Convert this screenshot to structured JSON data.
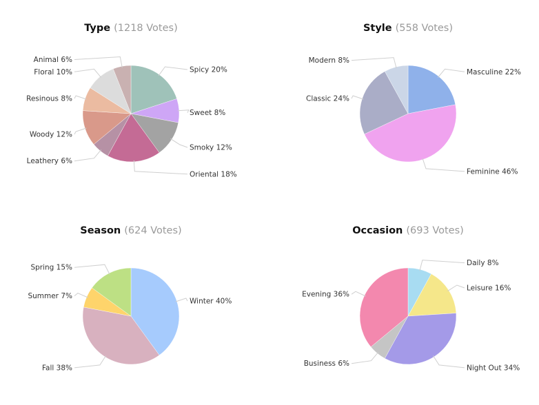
{
  "chart_data": [
    {
      "type": "pie",
      "title": "Type",
      "subtitle": "(1218 Votes)",
      "slices": [
        {
          "label": "Spicy",
          "value": 20,
          "display": "Spicy 20%",
          "color": "#9fc2b9"
        },
        {
          "label": "Sweet",
          "value": 8,
          "display": "Sweet 8%",
          "color": "#cea6f6"
        },
        {
          "label": "Smoky",
          "value": 12,
          "display": "Smoky 12%",
          "color": "#a3a3a3"
        },
        {
          "label": "Oriental",
          "value": 18,
          "display": "Oriental 18%",
          "color": "#c46b95"
        },
        {
          "label": "Leathery",
          "value": 6,
          "display": "Leathery 6%",
          "color": "#b691a5"
        },
        {
          "label": "Woody",
          "value": 12,
          "display": "Woody 12%",
          "color": "#d9998a"
        },
        {
          "label": "Resinous",
          "value": 8,
          "display": "Resinous 8%",
          "color": "#ebbba1"
        },
        {
          "label": "Floral",
          "value": 10,
          "display": "Floral 10%",
          "color": "#dcdcdc"
        },
        {
          "label": "Animal",
          "value": 6,
          "display": "Animal 6%",
          "color": "#c9b1b1"
        }
      ]
    },
    {
      "type": "pie",
      "title": "Style",
      "subtitle": "(558 Votes)",
      "slices": [
        {
          "label": "Masculine",
          "value": 22,
          "display": "Masculine 22%",
          "color": "#8fb1ea"
        },
        {
          "label": "Feminine",
          "value": 46,
          "display": "Feminine 46%",
          "color": "#f0a3ef"
        },
        {
          "label": "Classic",
          "value": 24,
          "display": "Classic 24%",
          "color": "#aaadc7"
        },
        {
          "label": "Modern",
          "value": 8,
          "display": "Modern 8%",
          "color": "#cbd6e7"
        }
      ]
    },
    {
      "type": "pie",
      "title": "Season",
      "subtitle": "(624 Votes)",
      "slices": [
        {
          "label": "Winter",
          "value": 40,
          "display": "Winter 40%",
          "color": "#a6cbfd"
        },
        {
          "label": "Fall",
          "value": 38,
          "display": "Fall 38%",
          "color": "#d8b1bf"
        },
        {
          "label": "Summer",
          "value": 7,
          "display": "Summer 7%",
          "color": "#fed46b"
        },
        {
          "label": "Spring",
          "value": 15,
          "display": "Spring 15%",
          "color": "#bde084"
        }
      ]
    },
    {
      "type": "pie",
      "title": "Occasion",
      "subtitle": "(693 Votes)",
      "slices": [
        {
          "label": "Daily",
          "value": 8,
          "display": "Daily 8%",
          "color": "#a8dcf2"
        },
        {
          "label": "Leisure",
          "value": 16,
          "display": "Leisure 16%",
          "color": "#f5e78a"
        },
        {
          "label": "Night Out",
          "value": 34,
          "display": "Night Out 34%",
          "color": "#a49ae8"
        },
        {
          "label": "Business",
          "value": 6,
          "display": "Business 6%",
          "color": "#c5c5c5"
        },
        {
          "label": "Evening",
          "value": 36,
          "display": "Evening 36%",
          "color": "#f388ae"
        }
      ]
    }
  ]
}
